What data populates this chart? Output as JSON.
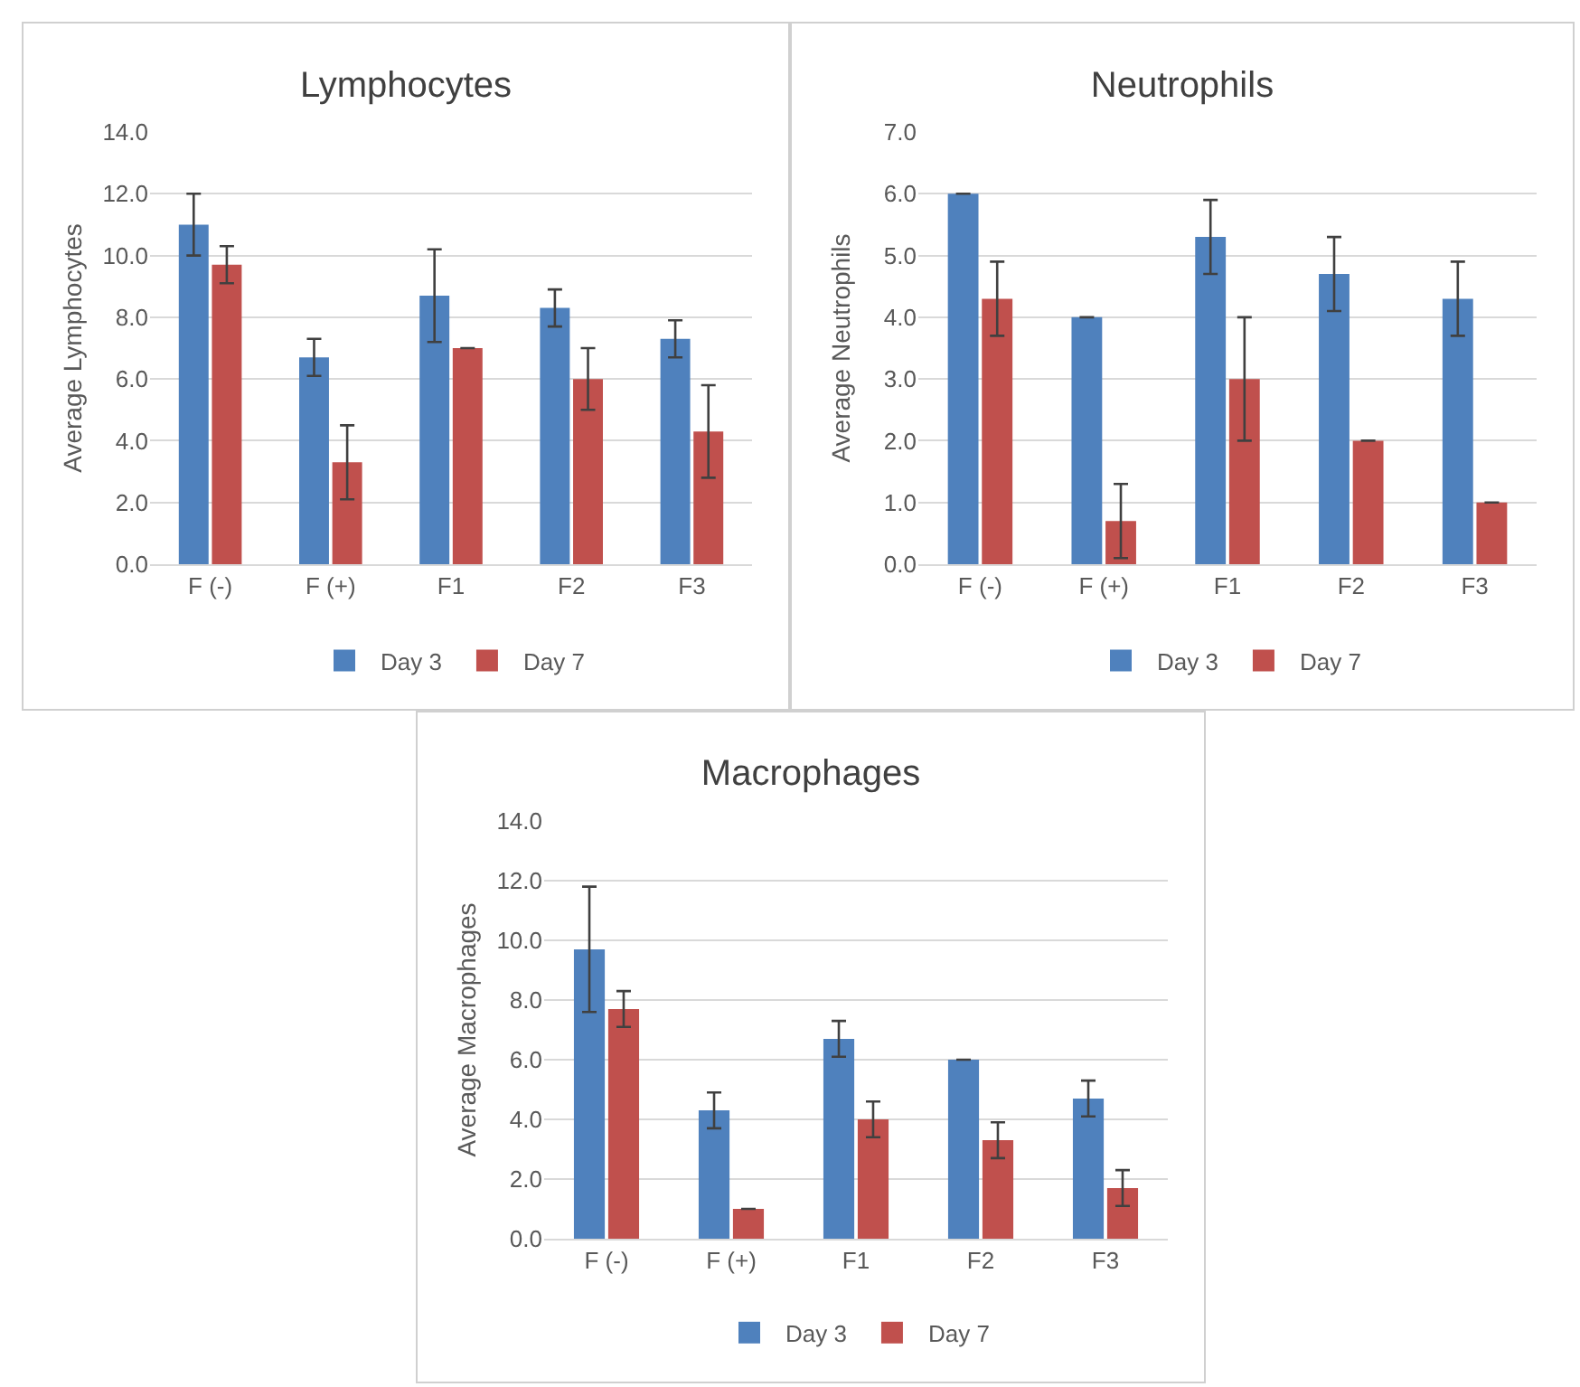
{
  "chart_data": [
    {
      "type": "bar",
      "title": "Lymphocytes",
      "ylabel": "Average Lymphocytes",
      "categories": [
        "F (-)",
        "F (+)",
        "F1",
        "F2",
        "F3"
      ],
      "series": [
        {
          "name": "Day 3",
          "color": "#4f81bd",
          "values": [
            11.0,
            6.7,
            8.7,
            8.3,
            7.3
          ],
          "errors": [
            1.0,
            0.6,
            1.5,
            0.6,
            0.6
          ]
        },
        {
          "name": "Day 7",
          "color": "#c0504d",
          "values": [
            9.7,
            3.3,
            7.0,
            6.0,
            4.3
          ],
          "errors": [
            0.6,
            1.2,
            0,
            1.0,
            1.5
          ]
        }
      ],
      "ylim": [
        0,
        14
      ],
      "yticks": [
        {
          "value": 0,
          "label": "0.0"
        },
        {
          "value": 2,
          "label": "2.0"
        },
        {
          "value": 4,
          "label": "4.0"
        },
        {
          "value": 6,
          "label": "6.0"
        },
        {
          "value": 8,
          "label": "8.0"
        },
        {
          "value": 10,
          "label": "10.0"
        },
        {
          "value": 12,
          "label": "12.0"
        },
        {
          "value": 14,
          "label": "14.0"
        }
      ],
      "grid": "y",
      "legend": "bottom"
    },
    {
      "type": "bar",
      "title": "Neutrophils",
      "ylabel": "Average Neutrophils",
      "categories": [
        "F (-)",
        "F (+)",
        "F1",
        "F2",
        "F3"
      ],
      "series": [
        {
          "name": "Day 3",
          "color": "#4f81bd",
          "values": [
            6.0,
            4.0,
            5.3,
            4.7,
            4.3
          ],
          "errors": [
            0,
            0,
            0.6,
            0.6,
            0.6
          ]
        },
        {
          "name": "Day 7",
          "color": "#c0504d",
          "values": [
            4.3,
            0.7,
            3.0,
            2.0,
            1.0
          ],
          "errors": [
            0.6,
            0.6,
            1.0,
            0,
            0
          ]
        }
      ],
      "ylim": [
        0,
        7
      ],
      "yticks": [
        {
          "value": 0,
          "label": "0.0"
        },
        {
          "value": 1,
          "label": "1.0"
        },
        {
          "value": 2,
          "label": "2.0"
        },
        {
          "value": 3,
          "label": "3.0"
        },
        {
          "value": 4,
          "label": "4.0"
        },
        {
          "value": 5,
          "label": "5.0"
        },
        {
          "value": 6,
          "label": "6.0"
        },
        {
          "value": 7,
          "label": "7.0"
        }
      ],
      "grid": "y",
      "legend": "bottom"
    },
    {
      "type": "bar",
      "title": "Macrophages",
      "ylabel": "Average Macrophages",
      "categories": [
        "F (-)",
        "F (+)",
        "F1",
        "F2",
        "F3"
      ],
      "series": [
        {
          "name": "Day 3",
          "color": "#4f81bd",
          "values": [
            9.7,
            4.3,
            6.7,
            6.0,
            4.7
          ],
          "errors": [
            2.1,
            0.6,
            0.6,
            0,
            0.6
          ]
        },
        {
          "name": "Day 7",
          "color": "#c0504d",
          "values": [
            7.7,
            1.0,
            4.0,
            3.3,
            1.7
          ],
          "errors": [
            0.6,
            0,
            0.6,
            0.6,
            0.6
          ]
        }
      ],
      "ylim": [
        0,
        14
      ],
      "yticks": [
        {
          "value": 0,
          "label": "0.0"
        },
        {
          "value": 2,
          "label": "2.0"
        },
        {
          "value": 4,
          "label": "4.0"
        },
        {
          "value": 6,
          "label": "6.0"
        },
        {
          "value": 8,
          "label": "8.0"
        },
        {
          "value": 10,
          "label": "10.0"
        },
        {
          "value": 12,
          "label": "12.0"
        },
        {
          "value": 14,
          "label": "14.0"
        }
      ],
      "grid": "y",
      "legend": "bottom"
    }
  ]
}
